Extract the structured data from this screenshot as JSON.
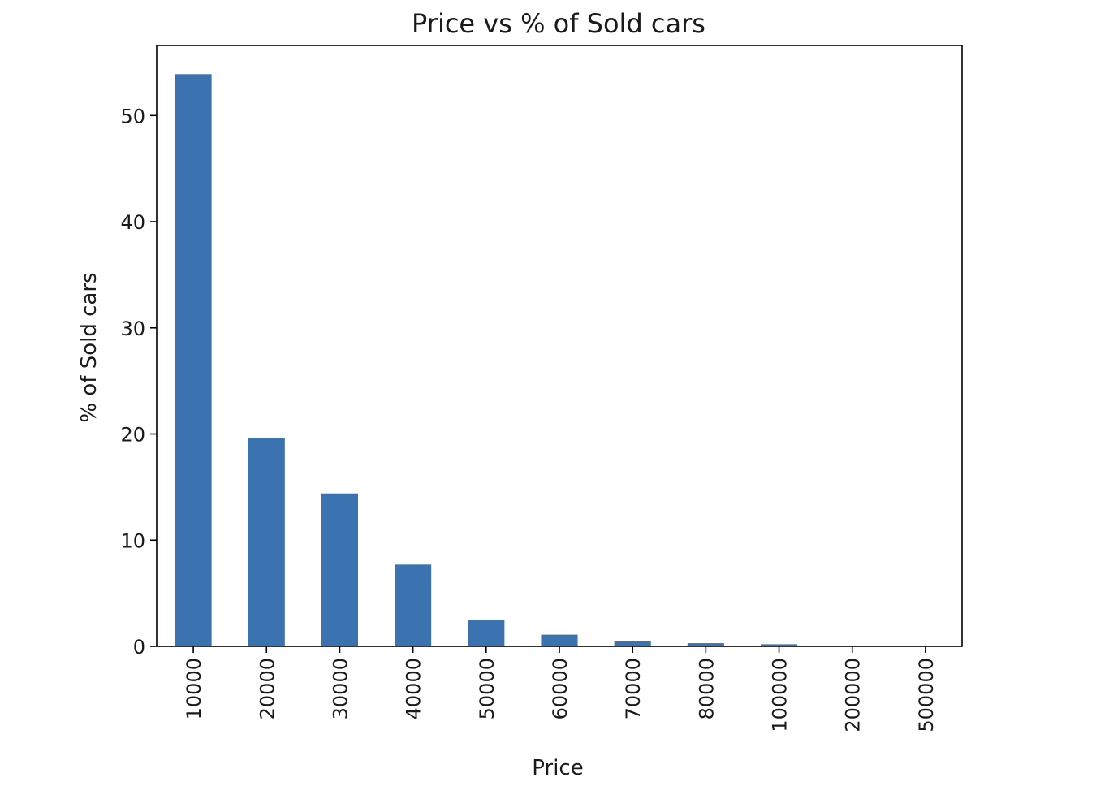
{
  "chart_data": {
    "type": "bar",
    "title": "Price vs % of Sold cars",
    "xlabel": "Price",
    "ylabel": "% of Sold cars",
    "categories": [
      "10000",
      "20000",
      "30000",
      "40000",
      "50000",
      "60000",
      "70000",
      "80000",
      "100000",
      "200000",
      "500000"
    ],
    "values": [
      53.9,
      19.6,
      14.4,
      7.7,
      2.5,
      1.1,
      0.5,
      0.3,
      0.2,
      0.05,
      0.02
    ],
    "yticks": [
      "0",
      "10",
      "20",
      "30",
      "40",
      "50"
    ],
    "ylim": [
      0,
      56.6
    ],
    "grid": false,
    "bar_color": "#3a73b0"
  }
}
